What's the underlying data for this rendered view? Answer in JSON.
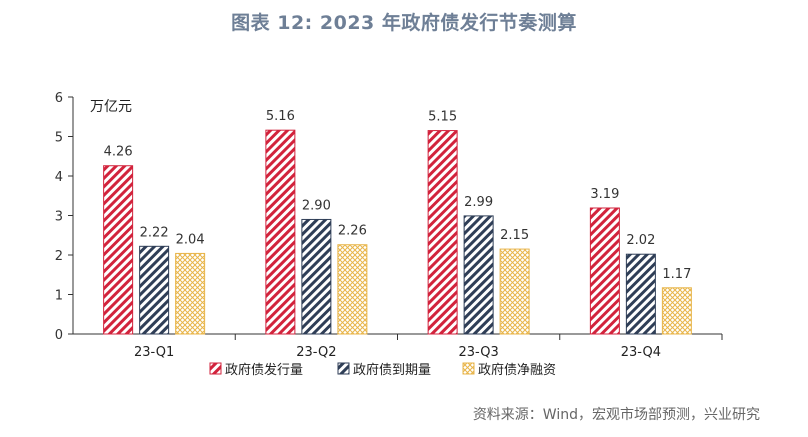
{
  "page": {
    "title": "图表 12: 2023 年政府债发行节奏测算",
    "source": "资料来源：Wind，宏观市场部预测，兴业研究"
  },
  "chart_data": {
    "type": "bar",
    "ylabel": "万亿元",
    "ylim": [
      0,
      6
    ],
    "yticks": [
      0,
      1,
      2,
      3,
      4,
      5,
      6
    ],
    "categories": [
      "23-Q1",
      "23-Q2",
      "23-Q3",
      "23-Q4"
    ],
    "series": [
      {
        "name": "政府债发行量",
        "values": [
          4.26,
          5.16,
          5.15,
          3.19
        ],
        "color": "#d2233c",
        "pattern": "diag-stripes"
      },
      {
        "name": "政府债到期量",
        "values": [
          2.22,
          2.9,
          2.99,
          2.02
        ],
        "color": "#2f3e57",
        "pattern": "diag-stripes"
      },
      {
        "name": "政府债净融资",
        "values": [
          2.04,
          2.26,
          2.15,
          1.17
        ],
        "color": "#e8b54a",
        "pattern": "crosshatch"
      }
    ],
    "legend_position": "bottom",
    "grid": false
  }
}
